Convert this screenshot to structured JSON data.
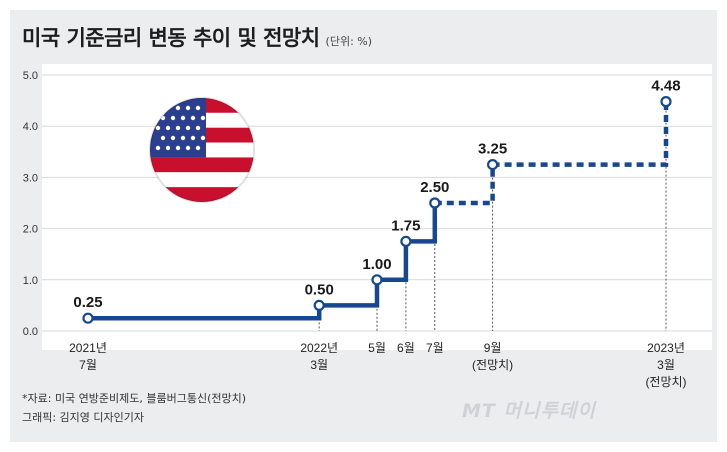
{
  "header": {
    "title": "미국 기준금리 변동 추이 및 전망치",
    "unit": "(단위: %)"
  },
  "chart_data": {
    "type": "line",
    "title": "미국 기준금리 변동 추이 및 전망치",
    "ylim": [
      0,
      5
    ],
    "yticks": [
      "0.0",
      "1.0",
      "2.0",
      "3.0",
      "4.0",
      "5.0"
    ],
    "grid": true,
    "legend": "none",
    "points": [
      {
        "x": "2021-07",
        "value": 0.25,
        "label": "0.25",
        "tick": [
          "2021년",
          "7월"
        ],
        "projected": false
      },
      {
        "x": "2022-03",
        "value": 0.5,
        "label": "0.50",
        "tick": [
          "2022년",
          "3월"
        ],
        "projected": false
      },
      {
        "x": "2022-05",
        "value": 1.0,
        "label": "1.00",
        "tick": [
          "5월"
        ],
        "projected": false
      },
      {
        "x": "2022-06",
        "value": 1.75,
        "label": "1.75",
        "tick": [
          "6월"
        ],
        "projected": false
      },
      {
        "x": "2022-07",
        "value": 2.5,
        "label": "2.50",
        "tick": [
          "7월"
        ],
        "projected": false
      },
      {
        "x": "2022-09",
        "value": 3.25,
        "label": "3.25",
        "tick": [
          "9월",
          "(전망치)"
        ],
        "projected": true
      },
      {
        "x": "2023-03",
        "value": 4.48,
        "label": "4.48",
        "tick": [
          "2023년",
          "3월",
          "(전망치)"
        ],
        "projected": true
      }
    ]
  },
  "colors": {
    "line": "#17488f",
    "background": "#ecedef",
    "flag_red": "#c8102e",
    "flag_blue": "#2a3f8f"
  },
  "icons": [
    "us-flag-icon"
  ],
  "footer": {
    "source": "*자료: 미국 연방준비제도, 블룸버그통신(전망치)",
    "credit": "그래픽: 김지영 디자인기자",
    "watermark": "MT 머니투데이"
  }
}
